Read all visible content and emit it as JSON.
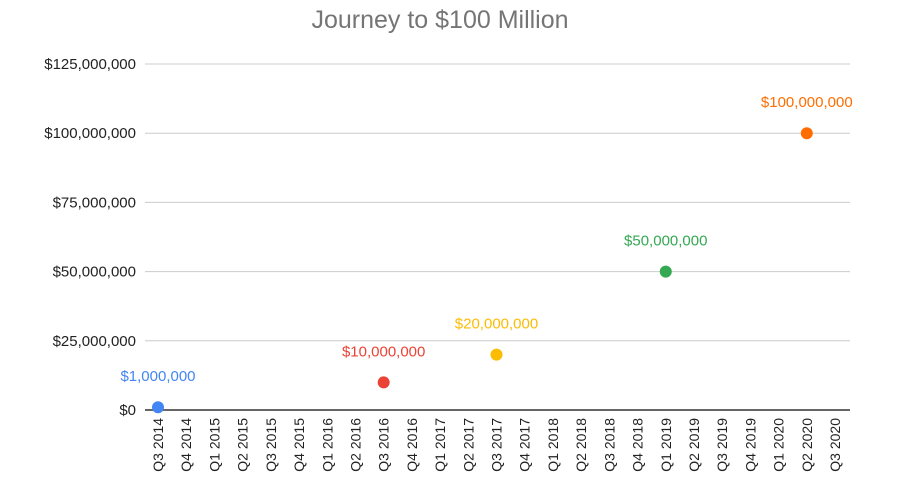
{
  "chart_data": {
    "type": "scatter",
    "title": "Journey to $100 Million",
    "xlabel": "",
    "ylabel": "",
    "ylim": [
      0,
      125000000
    ],
    "y_ticks": [
      {
        "value": 0,
        "label": "$0"
      },
      {
        "value": 25000000,
        "label": "$25,000,000"
      },
      {
        "value": 50000000,
        "label": "$50,000,000"
      },
      {
        "value": 75000000,
        "label": "$75,000,000"
      },
      {
        "value": 100000000,
        "label": "$100,000,000"
      },
      {
        "value": 125000000,
        "label": "$125,000,000"
      }
    ],
    "grid": true,
    "legend": "none",
    "categories": [
      "Q3 2014",
      "Q4 2014",
      "Q1 2015",
      "Q2 2015",
      "Q3 2015",
      "Q4 2015",
      "Q1 2016",
      "Q2 2016",
      "Q3 2016",
      "Q4 2016",
      "Q1 2017",
      "Q2 2017",
      "Q3 2017",
      "Q4 2017",
      "Q1 2018",
      "Q2 2018",
      "Q3 2018",
      "Q4 2018",
      "Q1 2019",
      "Q2 2019",
      "Q3 2019",
      "Q4 2019",
      "Q1 2020",
      "Q2 2020",
      "Q3 2020"
    ],
    "points": [
      {
        "x": "Q3 2014",
        "y": 1000000,
        "label": "$1,000,000",
        "color": "#4285f4"
      },
      {
        "x": "Q3 2016",
        "y": 10000000,
        "label": "$10,000,000",
        "color": "#ea4335"
      },
      {
        "x": "Q3 2017",
        "y": 20000000,
        "label": "$20,000,000",
        "color": "#fbbc04"
      },
      {
        "x": "Q1 2019",
        "y": 50000000,
        "label": "$50,000,000",
        "color": "#34a853"
      },
      {
        "x": "Q2 2020",
        "y": 100000000,
        "label": "$100,000,000",
        "color": "#ff6d01"
      }
    ]
  }
}
